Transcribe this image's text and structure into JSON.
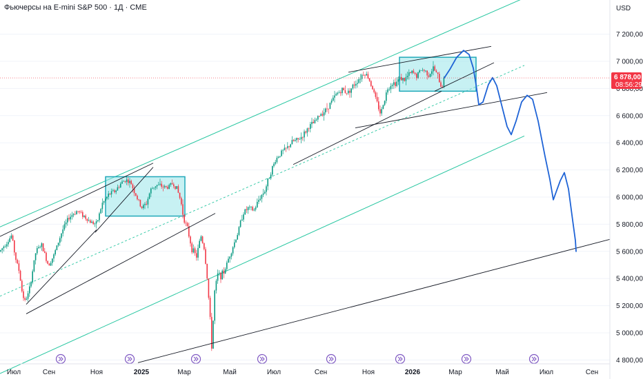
{
  "title": "Фьючерсы на E-mini S&P 500 · 1Д · CME",
  "currency_label": "USD",
  "price_tag": {
    "price": "6 878,00",
    "timer": "08:56:29",
    "value": 6878
  },
  "colors": {
    "up": "#089981",
    "down": "#f23645",
    "channel": "#26c6a0",
    "midline": "#26c6a0",
    "trend": "#131722",
    "box_fill": "#8fe3e8",
    "box_stroke": "#1fa8b8",
    "projection": "#1e63d6",
    "price_tag": "#f23645",
    "event_icon": "#7e57c2"
  },
  "chart_data": {
    "type": "candlestick",
    "y_range": [
      4750,
      7450
    ],
    "y_ticks": [
      {
        "value": 7200,
        "label": "7 200,00"
      },
      {
        "value": 7000,
        "label": "7 000,00"
      },
      {
        "value": 6800,
        "label": "6 800,00"
      },
      {
        "value": 6600,
        "label": "6 600,00"
      },
      {
        "value": 6400,
        "label": "6 400,00"
      },
      {
        "value": 6200,
        "label": "6 200,00"
      },
      {
        "value": 6000,
        "label": "6 000,00"
      },
      {
        "value": 5800,
        "label": "5 800,00"
      },
      {
        "value": 5600,
        "label": "5 600,00"
      },
      {
        "value": 5400,
        "label": "5 400,00"
      },
      {
        "value": 5200,
        "label": "5 200,00"
      },
      {
        "value": 5000,
        "label": "5 000,00"
      },
      {
        "value": 4800,
        "label": "4 800,00"
      }
    ],
    "x_ticks": [
      {
        "label": "Июл",
        "bold": false
      },
      {
        "label": "Сен",
        "bold": false
      },
      {
        "label": "Ноя",
        "bold": false
      },
      {
        "label": "2025",
        "bold": true
      },
      {
        "label": "Мар",
        "bold": false
      },
      {
        "label": "Май",
        "bold": false
      },
      {
        "label": "Июл",
        "bold": false
      },
      {
        "label": "Сен",
        "bold": false
      },
      {
        "label": "Ноя",
        "bold": false
      },
      {
        "label": "2026",
        "bold": true
      },
      {
        "label": "Мар",
        "bold": false
      },
      {
        "label": "Май",
        "bold": false
      },
      {
        "label": "Июл",
        "bold": false
      },
      {
        "label": "Сен",
        "bold": false
      }
    ],
    "price_anchors": [
      [
        0,
        5600
      ],
      [
        7,
        5650
      ],
      [
        12,
        5680
      ],
      [
        17,
        5720
      ],
      [
        22,
        5560
      ],
      [
        28,
        5450
      ],
      [
        32,
        5300
      ],
      [
        36,
        5230
      ],
      [
        42,
        5300
      ],
      [
        52,
        5600
      ],
      [
        60,
        5650
      ],
      [
        70,
        5500
      ],
      [
        78,
        5570
      ],
      [
        90,
        5750
      ],
      [
        100,
        5850
      ],
      [
        112,
        5900
      ],
      [
        122,
        5860
      ],
      [
        130,
        5820
      ],
      [
        140,
        5800
      ],
      [
        148,
        5950
      ],
      [
        158,
        6020
      ],
      [
        168,
        6050
      ],
      [
        175,
        6100
      ],
      [
        182,
        6130
      ],
      [
        190,
        6100
      ],
      [
        198,
        6000
      ],
      [
        205,
        5920
      ],
      [
        212,
        5950
      ],
      [
        218,
        6050
      ],
      [
        226,
        6090
      ],
      [
        234,
        6080
      ],
      [
        242,
        6070
      ],
      [
        250,
        6100
      ],
      [
        256,
        6070
      ],
      [
        262,
        5970
      ],
      [
        266,
        5850
      ],
      [
        272,
        5760
      ],
      [
        278,
        5620
      ],
      [
        285,
        5560
      ],
      [
        291,
        5720
      ],
      [
        296,
        5620
      ],
      [
        300,
        5420
      ],
      [
        304,
        5150
      ],
      [
        307,
        4880
      ],
      [
        311,
        5300
      ],
      [
        316,
        5440
      ],
      [
        320,
        5420
      ],
      [
        325,
        5450
      ],
      [
        332,
        5560
      ],
      [
        338,
        5640
      ],
      [
        345,
        5740
      ],
      [
        352,
        5880
      ],
      [
        360,
        5920
      ],
      [
        368,
        5900
      ],
      [
        376,
        5990
      ],
      [
        384,
        6050
      ],
      [
        392,
        6180
      ],
      [
        400,
        6280
      ],
      [
        408,
        6330
      ],
      [
        416,
        6360
      ],
      [
        424,
        6410
      ],
      [
        432,
        6420
      ],
      [
        440,
        6460
      ],
      [
        448,
        6520
      ],
      [
        456,
        6550
      ],
      [
        464,
        6610
      ],
      [
        472,
        6640
      ],
      [
        480,
        6700
      ],
      [
        488,
        6760
      ],
      [
        496,
        6790
      ],
      [
        504,
        6770
      ],
      [
        512,
        6820
      ],
      [
        520,
        6870
      ],
      [
        528,
        6920
      ],
      [
        534,
        6880
      ],
      [
        540,
        6800
      ],
      [
        546,
        6700
      ],
      [
        552,
        6610
      ],
      [
        556,
        6700
      ],
      [
        562,
        6800
      ],
      [
        568,
        6840
      ],
      [
        574,
        6840
      ],
      [
        580,
        6880
      ],
      [
        586,
        6860
      ],
      [
        592,
        6900
      ],
      [
        598,
        6920
      ],
      [
        604,
        6890
      ],
      [
        610,
        6940
      ],
      [
        616,
        6930
      ],
      [
        622,
        6900
      ],
      [
        628,
        6950
      ],
      [
        634,
        6900
      ],
      [
        640,
        6800
      ],
      [
        644,
        6878
      ]
    ],
    "channel_lines": [
      {
        "id": "channel-upper",
        "x1": 0,
        "y1": 5780,
        "x2": 757,
        "y2": 7460
      },
      {
        "id": "channel-middle-dashed",
        "x1": 0,
        "y1": 5270,
        "x2": 760,
        "y2": 6970
      },
      {
        "id": "channel-lower",
        "x1": 0,
        "y1": 4700,
        "x2": 760,
        "y2": 6450
      }
    ],
    "trend_lines": [
      {
        "id": "trend-2024-top",
        "x1": 0,
        "y1": 5710,
        "x2": 222,
        "y2": 6250
      },
      {
        "id": "trend-2024-rise",
        "x1": 138,
        "y1": 5740,
        "x2": 222,
        "y2": 6220
      },
      {
        "id": "trend-2024-low",
        "x1": 38,
        "y1": 5140,
        "x2": 312,
        "y2": 5880
      },
      {
        "id": "trend-2024-low-short",
        "x1": 38,
        "y1": 5210,
        "x2": 140,
        "y2": 5760
      },
      {
        "id": "trend-2025-support",
        "x1": 425,
        "y1": 6240,
        "x2": 640,
        "y2": 6780
      },
      {
        "id": "trend-2026-wedge-top",
        "x1": 505,
        "y1": 6920,
        "x2": 712,
        "y2": 7110
      },
      {
        "id": "trend-2026-wedge-bottom",
        "x1": 630,
        "y1": 6780,
        "x2": 716,
        "y2": 6990
      },
      {
        "id": "trend-2026-neckline",
        "x1": 515,
        "y1": 6510,
        "x2": 793,
        "y2": 6770
      },
      {
        "id": "trend-long-base",
        "x1": 200,
        "y1": 4780,
        "x2": 885,
        "y2": 5690
      }
    ],
    "boxes": [
      {
        "id": "range-box-2025",
        "x1": 153,
        "y1": 6150,
        "x2": 268,
        "y2": 5860
      },
      {
        "id": "range-box-2026",
        "x1": 579,
        "y1": 7030,
        "x2": 690,
        "y2": 6780
      }
    ],
    "projection": [
      [
        644,
        6878
      ],
      [
        652,
        6940
      ],
      [
        662,
        7030
      ],
      [
        672,
        7080
      ],
      [
        680,
        7050
      ],
      [
        686,
        6950
      ],
      [
        690,
        6830
      ],
      [
        694,
        6680
      ],
      [
        700,
        6700
      ],
      [
        708,
        6830
      ],
      [
        714,
        6880
      ],
      [
        720,
        6820
      ],
      [
        728,
        6660
      ],
      [
        735,
        6520
      ],
      [
        741,
        6460
      ],
      [
        748,
        6560
      ],
      [
        756,
        6700
      ],
      [
        764,
        6750
      ],
      [
        772,
        6720
      ],
      [
        780,
        6560
      ],
      [
        790,
        6300
      ],
      [
        797,
        6130
      ],
      [
        802,
        5980
      ],
      [
        807,
        6050
      ],
      [
        812,
        6120
      ],
      [
        818,
        6180
      ],
      [
        824,
        6060
      ],
      [
        830,
        5830
      ],
      [
        834,
        5680
      ],
      [
        835,
        5600
      ]
    ],
    "event_markers": [
      88,
      188,
      284,
      380,
      480,
      580,
      676,
      774
    ]
  }
}
